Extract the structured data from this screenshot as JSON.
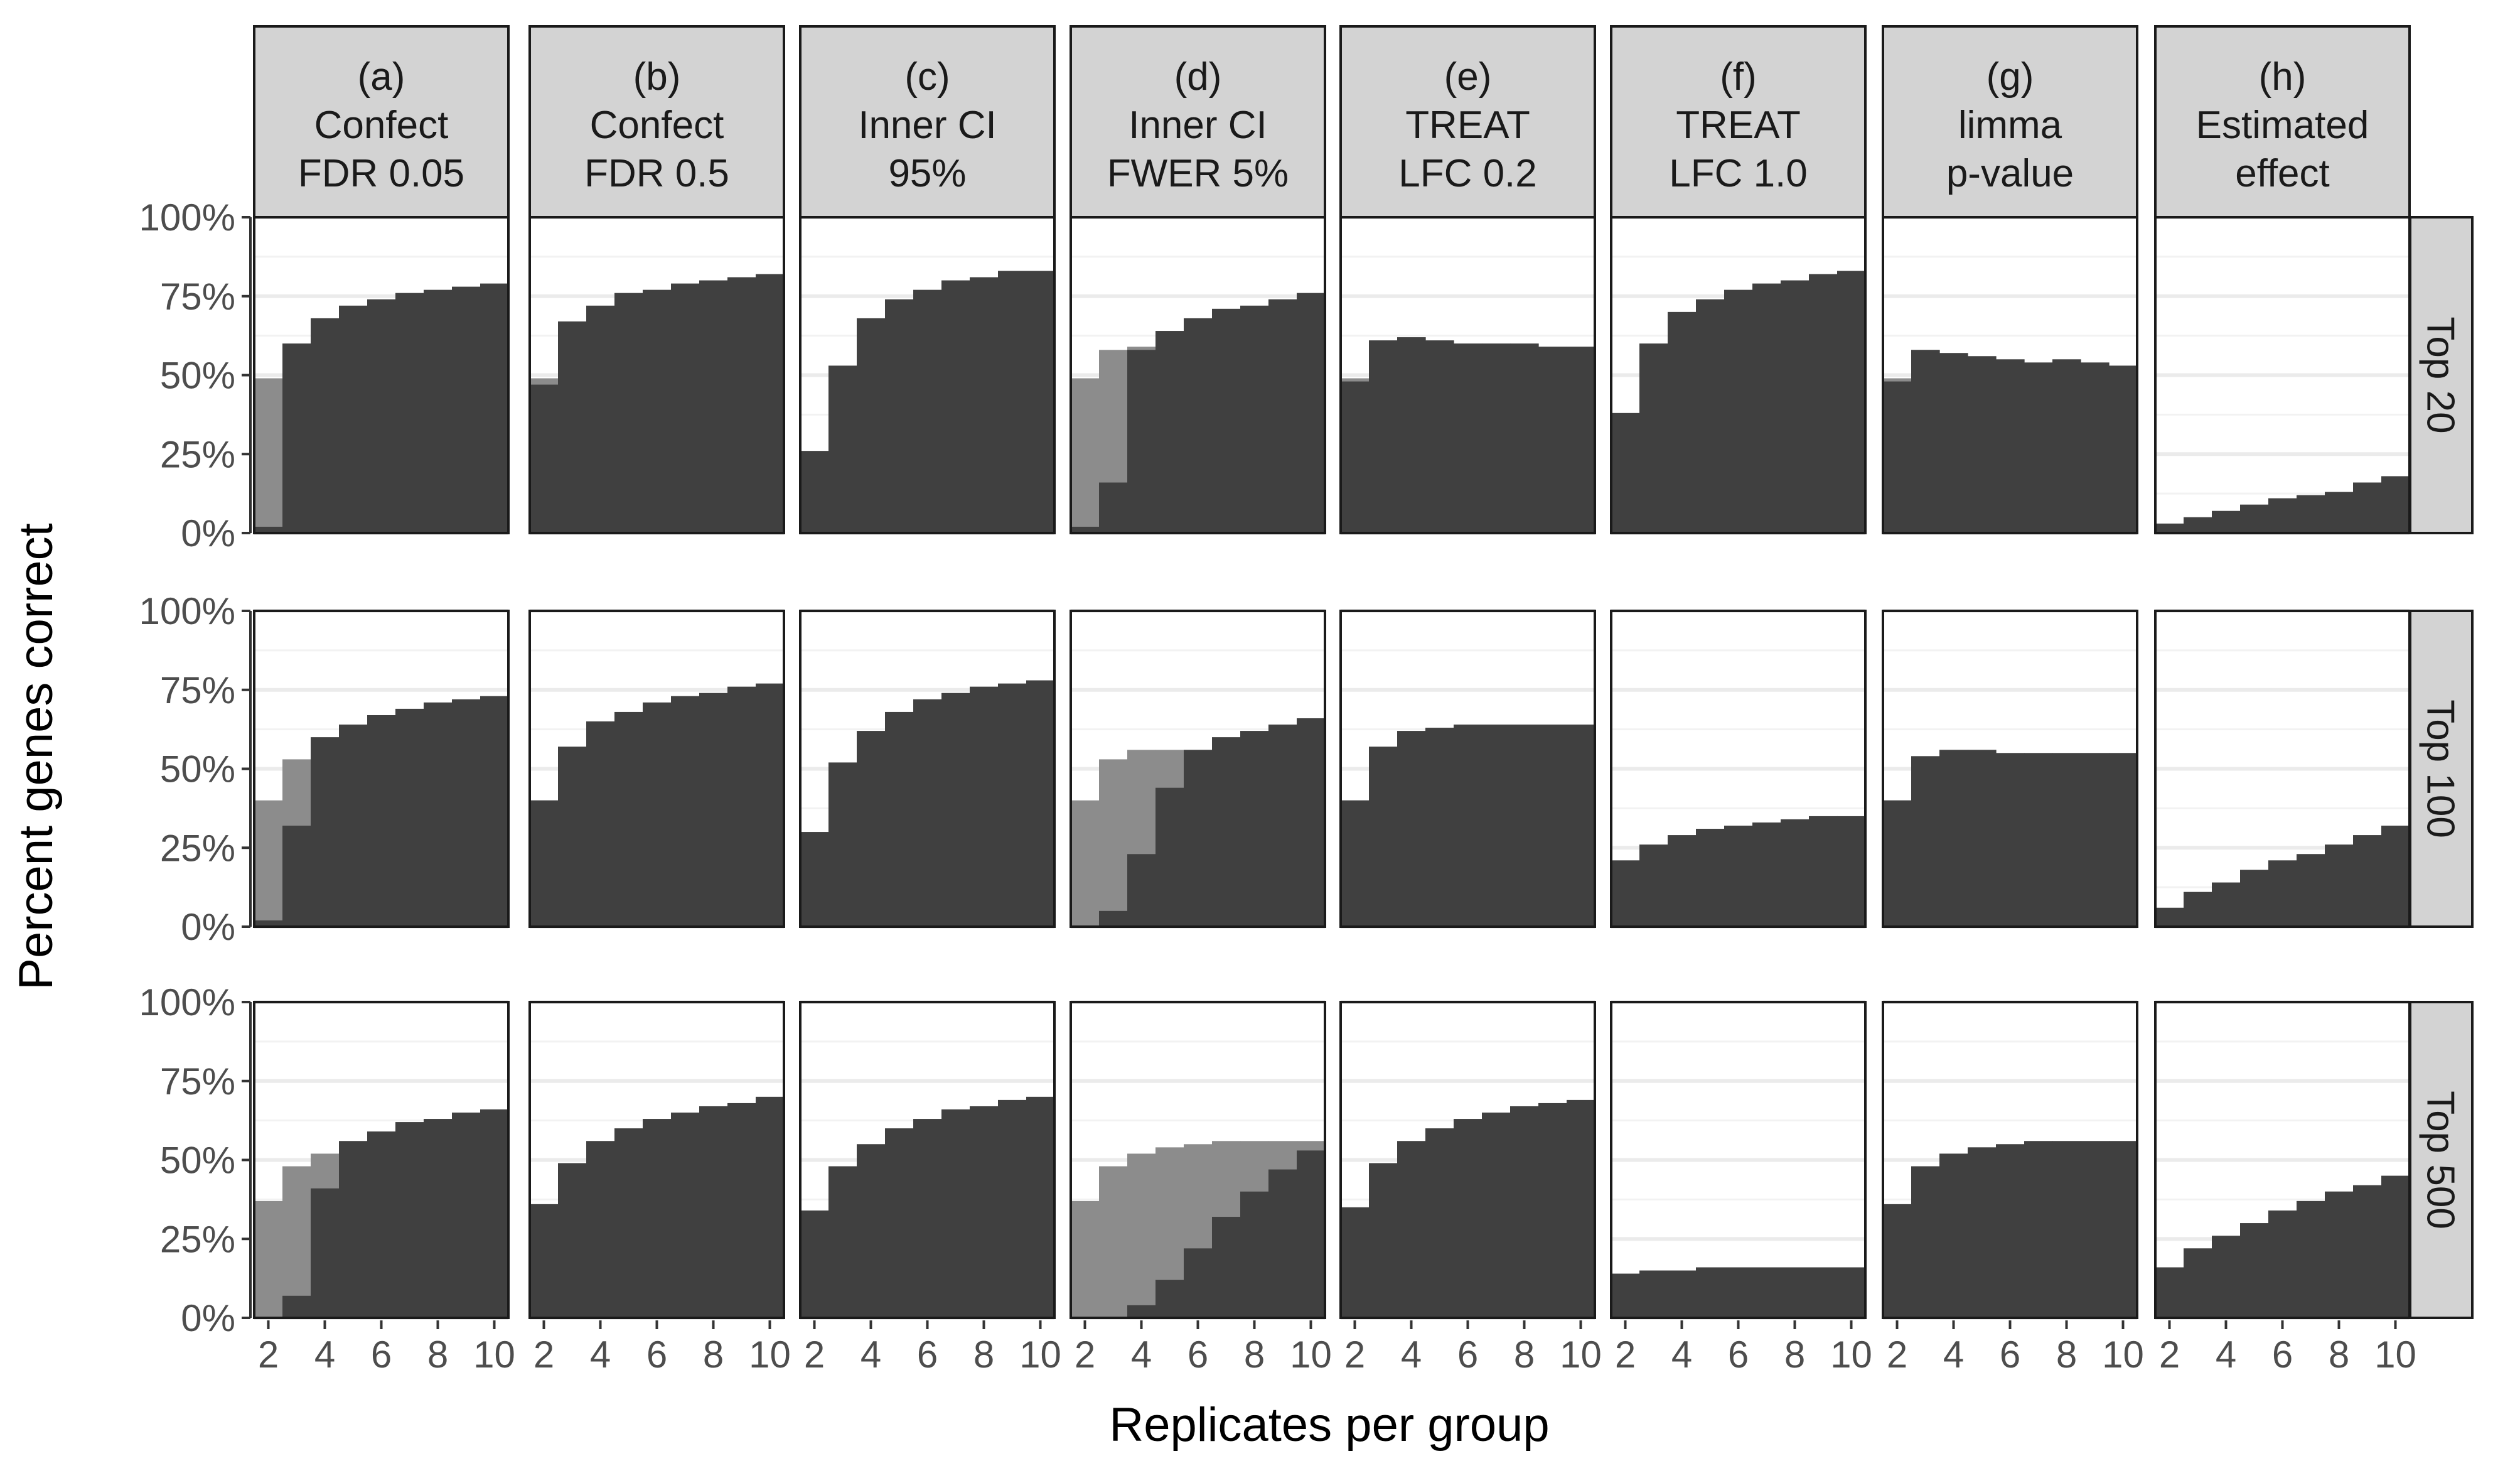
{
  "chart_data": {
    "type": "bar",
    "subtype": "faceted step-area",
    "ylabel": "Percent genes correct",
    "xlabel": "Replicates per group",
    "x": [
      2,
      3,
      4,
      5,
      6,
      7,
      8,
      9,
      10
    ],
    "xticks": [
      2,
      4,
      6,
      8,
      10
    ],
    "xtick_labels": [
      "2",
      "4",
      "6",
      "8",
      "10"
    ],
    "xlim": [
      1.5,
      10.5
    ],
    "ylim": [
      0,
      100
    ],
    "yticks": [
      0,
      25,
      50,
      75,
      100
    ],
    "ytick_labels": [
      "0%",
      "25%",
      "50%",
      "75%",
      "100%"
    ],
    "grid": "horizontal",
    "colors": {
      "light": "#8c8c8c",
      "dark": "#404040",
      "strip": "#d3d3d3",
      "grid": "#ebebeb"
    },
    "columns": [
      {
        "letter": "(a)",
        "line1": "Confect",
        "line2": "FDR 0.05"
      },
      {
        "letter": "(b)",
        "line1": "Confect",
        "line2": "FDR 0.5"
      },
      {
        "letter": "(c)",
        "line1": "Inner CI",
        "line2": "95%"
      },
      {
        "letter": "(d)",
        "line1": "Inner CI",
        "line2": "FWER 5%"
      },
      {
        "letter": "(e)",
        "line1": "TREAT",
        "line2": "LFC 0.2"
      },
      {
        "letter": "(f)",
        "line1": "TREAT",
        "line2": "LFC 1.0"
      },
      {
        "letter": "(g)",
        "line1": "limma",
        "line2": "p-value"
      },
      {
        "letter": "(h)",
        "line1": "Estimated",
        "line2": "effect"
      }
    ],
    "rows": [
      "Top 20",
      "Top 100",
      "Top 500"
    ],
    "panels": [
      [
        {
          "light": [
            49,
            60,
            68,
            72,
            74,
            76,
            77,
            78,
            79
          ],
          "dark": [
            2,
            60,
            68,
            72,
            74,
            76,
            77,
            78,
            79
          ]
        },
        {
          "light": [
            49,
            67,
            72,
            76,
            77,
            79,
            80,
            81,
            82
          ],
          "dark": [
            47,
            67,
            72,
            76,
            77,
            79,
            80,
            81,
            82
          ]
        },
        {
          "light": [
            26,
            53,
            68,
            74,
            77,
            80,
            81,
            83,
            83
          ],
          "dark": [
            26,
            53,
            68,
            74,
            77,
            80,
            81,
            83,
            83
          ]
        },
        {
          "light": [
            49,
            58,
            59,
            64,
            68,
            71,
            72,
            74,
            76
          ],
          "dark": [
            2,
            16,
            58,
            64,
            68,
            71,
            72,
            74,
            76
          ]
        },
        {
          "light": [
            49,
            61,
            62,
            61,
            60,
            60,
            60,
            59,
            59
          ],
          "dark": [
            48,
            61,
            62,
            61,
            60,
            60,
            60,
            59,
            59
          ]
        },
        {
          "light": [
            38,
            60,
            70,
            74,
            77,
            79,
            80,
            82,
            83
          ],
          "dark": [
            38,
            60,
            70,
            74,
            77,
            79,
            80,
            82,
            83
          ]
        },
        {
          "light": [
            49,
            58,
            57,
            56,
            55,
            54,
            55,
            54,
            53
          ],
          "dark": [
            48,
            58,
            57,
            56,
            55,
            54,
            55,
            54,
            53
          ]
        },
        {
          "light": [
            3,
            5,
            7,
            9,
            11,
            12,
            13,
            16,
            18
          ],
          "dark": [
            3,
            5,
            7,
            9,
            11,
            12,
            13,
            16,
            18
          ]
        }
      ],
      [
        {
          "light": [
            40,
            53,
            60,
            64,
            67,
            69,
            71,
            72,
            73
          ],
          "dark": [
            2,
            32,
            60,
            64,
            67,
            69,
            71,
            72,
            73
          ]
        },
        {
          "light": [
            40,
            57,
            65,
            68,
            71,
            73,
            74,
            76,
            77
          ],
          "dark": [
            40,
            57,
            65,
            68,
            71,
            73,
            74,
            76,
            77
          ]
        },
        {
          "light": [
            30,
            52,
            62,
            68,
            72,
            74,
            76,
            77,
            78
          ],
          "dark": [
            30,
            52,
            62,
            68,
            72,
            74,
            76,
            77,
            78
          ]
        },
        {
          "light": [
            40,
            53,
            56,
            56,
            56,
            60,
            62,
            64,
            66
          ],
          "dark": [
            0,
            5,
            23,
            44,
            56,
            60,
            62,
            64,
            66
          ]
        },
        {
          "light": [
            40,
            57,
            62,
            63,
            64,
            64,
            64,
            64,
            64
          ],
          "dark": [
            40,
            57,
            62,
            63,
            64,
            64,
            64,
            64,
            64
          ]
        },
        {
          "light": [
            21,
            26,
            29,
            31,
            32,
            33,
            34,
            35,
            35
          ],
          "dark": [
            21,
            26,
            29,
            31,
            32,
            33,
            34,
            35,
            35
          ]
        },
        {
          "light": [
            40,
            54,
            56,
            56,
            55,
            55,
            55,
            55,
            55
          ],
          "dark": [
            40,
            54,
            56,
            56,
            55,
            55,
            55,
            55,
            55
          ]
        },
        {
          "light": [
            6,
            11,
            14,
            18,
            21,
            23,
            26,
            29,
            32
          ],
          "dark": [
            6,
            11,
            14,
            18,
            21,
            23,
            26,
            29,
            32
          ]
        }
      ],
      [
        {
          "light": [
            37,
            48,
            52,
            56,
            59,
            62,
            63,
            65,
            66
          ],
          "dark": [
            0,
            7,
            41,
            56,
            59,
            62,
            63,
            65,
            66
          ]
        },
        {
          "light": [
            36,
            49,
            56,
            60,
            63,
            65,
            67,
            68,
            70
          ],
          "dark": [
            36,
            49,
            56,
            60,
            63,
            65,
            67,
            68,
            70
          ]
        },
        {
          "light": [
            34,
            48,
            55,
            60,
            63,
            66,
            67,
            69,
            70
          ],
          "dark": [
            34,
            48,
            55,
            60,
            63,
            66,
            67,
            69,
            70
          ]
        },
        {
          "light": [
            37,
            48,
            52,
            54,
            55,
            56,
            56,
            56,
            56
          ],
          "dark": [
            0,
            0,
            4,
            12,
            22,
            32,
            40,
            47,
            53
          ]
        },
        {
          "light": [
            35,
            49,
            56,
            60,
            63,
            65,
            67,
            68,
            69
          ],
          "dark": [
            35,
            49,
            56,
            60,
            63,
            65,
            67,
            68,
            69
          ]
        },
        {
          "light": [
            14,
            15,
            15,
            16,
            16,
            16,
            16,
            16,
            16
          ],
          "dark": [
            14,
            15,
            15,
            16,
            16,
            16,
            16,
            16,
            16
          ]
        },
        {
          "light": [
            36,
            48,
            52,
            54,
            55,
            56,
            56,
            56,
            56
          ],
          "dark": [
            36,
            48,
            52,
            54,
            55,
            56,
            56,
            56,
            56
          ]
        },
        {
          "light": [
            16,
            22,
            26,
            30,
            34,
            37,
            40,
            42,
            45
          ],
          "dark": [
            16,
            22,
            26,
            30,
            34,
            37,
            40,
            42,
            45
          ]
        }
      ]
    ]
  }
}
